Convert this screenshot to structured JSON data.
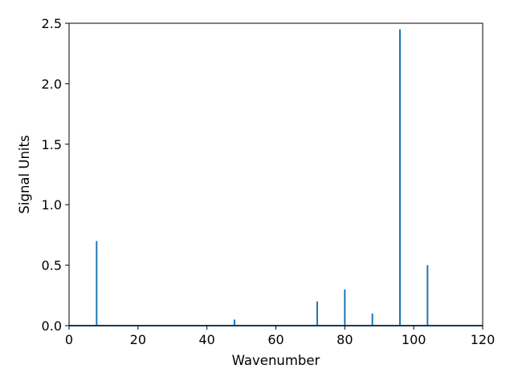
{
  "chart_data": {
    "type": "line",
    "title": "",
    "xlabel": "Wavenumber",
    "ylabel": "Signal Units",
    "xlim": [
      0,
      120
    ],
    "ylim": [
      0,
      2.5
    ],
    "xticks": [
      0,
      20,
      40,
      60,
      80,
      100,
      120
    ],
    "xtick_labels": [
      "0",
      "20",
      "40",
      "60",
      "80",
      "100",
      "120"
    ],
    "yticks": [
      0,
      0.5,
      1.0,
      1.5,
      2.0,
      2.5
    ],
    "ytick_labels": [
      "0.0",
      "0.5",
      "1.0",
      "1.5",
      "2.0",
      "2.5"
    ],
    "grid": false,
    "legend": "none",
    "series": [
      {
        "color": "#1f77b4",
        "peaks": [
          {
            "x": 8,
            "y": 0.7
          },
          {
            "x": 48,
            "y": 0.05
          },
          {
            "x": 72,
            "y": 0.2
          },
          {
            "x": 80,
            "y": 0.3
          },
          {
            "x": 88,
            "y": 0.1
          },
          {
            "x": 96,
            "y": 2.45
          },
          {
            "x": 104,
            "y": 0.5
          }
        ]
      }
    ]
  }
}
